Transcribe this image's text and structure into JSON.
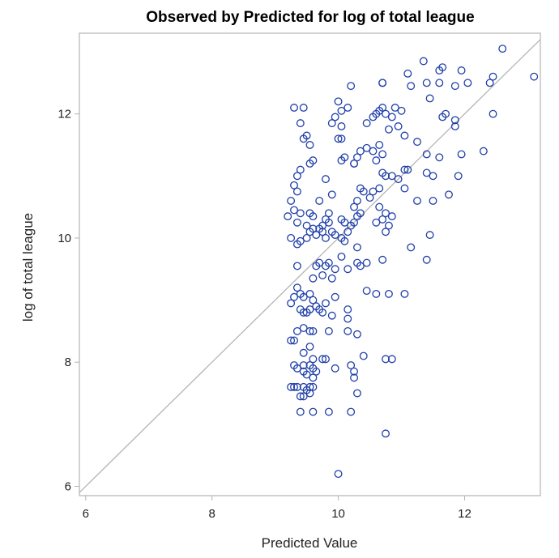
{
  "chart_data": {
    "type": "scatter",
    "title": "Observed by Predicted for log of total league",
    "xlabel": "Predicted Value",
    "ylabel": "log of total league",
    "xlim": [
      5.9,
      13.2
    ],
    "ylim": [
      5.85,
      13.3
    ],
    "xticks": [
      "6",
      "8",
      "10",
      "12"
    ],
    "yticks": [
      "6",
      "8",
      "10",
      "12"
    ],
    "reference_line": "y = x",
    "marker_color": "#1f3fa8",
    "line_color": "#b4b4b4",
    "frame_color": "#b4b4b4",
    "grid": false,
    "points": [
      [
        9.3,
        12.1
      ],
      [
        9.45,
        12.1
      ],
      [
        9.5,
        11.65
      ],
      [
        9.45,
        11.6
      ],
      [
        9.55,
        11.5
      ],
      [
        9.4,
        11.85
      ],
      [
        9.6,
        11.25
      ],
      [
        9.55,
        11.2
      ],
      [
        9.4,
        11.1
      ],
      [
        9.35,
        11.0
      ],
      [
        9.3,
        10.85
      ],
      [
        9.35,
        10.75
      ],
      [
        9.25,
        10.6
      ],
      [
        9.3,
        10.45
      ],
      [
        9.4,
        10.4
      ],
      [
        9.2,
        10.35
      ],
      [
        9.35,
        10.25
      ],
      [
        9.25,
        10.0
      ],
      [
        9.4,
        9.95
      ],
      [
        9.35,
        9.9
      ],
      [
        9.5,
        10.0
      ],
      [
        9.55,
        10.4
      ],
      [
        9.6,
        10.35
      ],
      [
        9.5,
        10.2
      ],
      [
        9.55,
        10.1
      ],
      [
        9.6,
        10.15
      ],
      [
        9.65,
        10.05
      ],
      [
        9.7,
        10.6
      ],
      [
        9.75,
        10.2
      ],
      [
        9.8,
        10.3
      ],
      [
        9.85,
        10.25
      ],
      [
        9.75,
        10.1
      ],
      [
        9.8,
        10.0
      ],
      [
        9.7,
        10.15
      ],
      [
        9.9,
        10.1
      ],
      [
        9.95,
        10.05
      ],
      [
        9.85,
        10.4
      ],
      [
        9.9,
        10.7
      ],
      [
        9.8,
        10.95
      ],
      [
        9.9,
        11.85
      ],
      [
        9.95,
        11.95
      ],
      [
        10.05,
        11.8
      ],
      [
        10.0,
        12.2
      ],
      [
        10.05,
        12.05
      ],
      [
        10.2,
        12.45
      ],
      [
        10.15,
        12.1
      ],
      [
        10.0,
        11.6
      ],
      [
        10.05,
        11.6
      ],
      [
        10.05,
        11.25
      ],
      [
        10.1,
        11.3
      ],
      [
        10.25,
        11.2
      ],
      [
        10.25,
        11.2
      ],
      [
        10.3,
        11.3
      ],
      [
        10.35,
        11.4
      ],
      [
        10.45,
        11.45
      ],
      [
        10.55,
        11.4
      ],
      [
        10.6,
        11.25
      ],
      [
        10.65,
        11.5
      ],
      [
        10.7,
        11.35
      ],
      [
        10.45,
        11.85
      ],
      [
        10.55,
        11.95
      ],
      [
        10.6,
        12.0
      ],
      [
        10.65,
        12.05
      ],
      [
        10.7,
        12.1
      ],
      [
        10.75,
        12.0
      ],
      [
        10.8,
        11.75
      ],
      [
        10.85,
        11.95
      ],
      [
        10.9,
        12.1
      ],
      [
        10.95,
        11.8
      ],
      [
        11.0,
        12.05
      ],
      [
        11.05,
        11.65
      ],
      [
        10.7,
        12.5
      ],
      [
        10.7,
        12.5
      ],
      [
        11.1,
        12.65
      ],
      [
        11.15,
        12.45
      ],
      [
        11.4,
        12.5
      ],
      [
        11.35,
        12.85
      ],
      [
        11.6,
        12.7
      ],
      [
        11.65,
        12.75
      ],
      [
        11.85,
        12.45
      ],
      [
        11.95,
        12.7
      ],
      [
        12.05,
        12.5
      ],
      [
        12.4,
        12.5
      ],
      [
        12.45,
        12.6
      ],
      [
        12.6,
        13.05
      ],
      [
        13.1,
        12.6
      ],
      [
        11.45,
        12.25
      ],
      [
        11.6,
        12.5
      ],
      [
        11.65,
        11.95
      ],
      [
        11.7,
        12.0
      ],
      [
        11.85,
        11.9
      ],
      [
        11.85,
        11.8
      ],
      [
        12.45,
        12.0
      ],
      [
        11.25,
        11.55
      ],
      [
        11.4,
        11.35
      ],
      [
        11.6,
        11.3
      ],
      [
        11.95,
        11.35
      ],
      [
        12.3,
        11.4
      ],
      [
        11.5,
        11.0
      ],
      [
        11.4,
        11.05
      ],
      [
        11.75,
        10.7
      ],
      [
        11.9,
        11.0
      ],
      [
        11.5,
        10.6
      ],
      [
        11.25,
        10.6
      ],
      [
        11.05,
        10.8
      ],
      [
        11.1,
        11.1
      ],
      [
        11.05,
        11.1
      ],
      [
        10.95,
        10.95
      ],
      [
        10.85,
        11.0
      ],
      [
        10.75,
        11.0
      ],
      [
        10.7,
        11.05
      ],
      [
        10.65,
        10.8
      ],
      [
        10.55,
        10.75
      ],
      [
        10.5,
        10.65
      ],
      [
        10.4,
        10.75
      ],
      [
        10.35,
        10.8
      ],
      [
        10.3,
        10.6
      ],
      [
        10.25,
        10.5
      ],
      [
        10.35,
        10.4
      ],
      [
        10.3,
        10.35
      ],
      [
        10.25,
        10.25
      ],
      [
        10.2,
        10.2
      ],
      [
        10.1,
        10.25
      ],
      [
        10.05,
        10.3
      ],
      [
        10.15,
        10.1
      ],
      [
        10.05,
        10.0
      ],
      [
        10.1,
        9.95
      ],
      [
        10.7,
        10.3
      ],
      [
        10.6,
        10.25
      ],
      [
        10.75,
        10.1
      ],
      [
        10.8,
        10.2
      ],
      [
        10.85,
        10.35
      ],
      [
        10.75,
        10.4
      ],
      [
        10.65,
        10.5
      ],
      [
        11.45,
        10.05
      ],
      [
        11.4,
        9.65
      ],
      [
        11.15,
        9.85
      ],
      [
        9.35,
        9.55
      ],
      [
        9.65,
        9.55
      ],
      [
        9.7,
        9.6
      ],
      [
        9.8,
        9.55
      ],
      [
        9.85,
        9.6
      ],
      [
        9.75,
        9.4
      ],
      [
        9.6,
        9.35
      ],
      [
        9.9,
        9.35
      ],
      [
        9.95,
        9.5
      ],
      [
        10.05,
        9.7
      ],
      [
        10.15,
        9.5
      ],
      [
        10.3,
        9.6
      ],
      [
        10.35,
        9.55
      ],
      [
        10.45,
        9.6
      ],
      [
        10.7,
        9.65
      ],
      [
        10.3,
        9.85
      ],
      [
        9.35,
        9.2
      ],
      [
        9.4,
        9.1
      ],
      [
        9.45,
        9.05
      ],
      [
        9.55,
        9.1
      ],
      [
        9.6,
        9.0
      ],
      [
        9.65,
        8.9
      ],
      [
        9.55,
        8.85
      ],
      [
        9.5,
        8.8
      ],
      [
        9.45,
        8.8
      ],
      [
        9.4,
        8.85
      ],
      [
        9.3,
        9.05
      ],
      [
        9.25,
        8.95
      ],
      [
        9.7,
        8.85
      ],
      [
        9.8,
        8.95
      ],
      [
        9.75,
        8.8
      ],
      [
        9.9,
        8.75
      ],
      [
        9.95,
        9.05
      ],
      [
        10.15,
        8.85
      ],
      [
        10.15,
        8.7
      ],
      [
        10.45,
        9.15
      ],
      [
        10.6,
        9.1
      ],
      [
        10.8,
        9.1
      ],
      [
        11.05,
        9.1
      ],
      [
        9.25,
        8.35
      ],
      [
        9.3,
        8.35
      ],
      [
        9.35,
        8.5
      ],
      [
        9.45,
        8.55
      ],
      [
        9.55,
        8.5
      ],
      [
        9.6,
        8.5
      ],
      [
        9.85,
        8.5
      ],
      [
        10.15,
        8.5
      ],
      [
        10.3,
        8.45
      ],
      [
        10.4,
        8.1
      ],
      [
        9.45,
        8.15
      ],
      [
        9.55,
        8.25
      ],
      [
        9.6,
        8.05
      ],
      [
        9.75,
        8.05
      ],
      [
        9.8,
        8.05
      ],
      [
        9.95,
        7.9
      ],
      [
        10.2,
        7.95
      ],
      [
        10.25,
        7.85
      ],
      [
        10.25,
        7.75
      ],
      [
        10.75,
        8.05
      ],
      [
        10.85,
        8.05
      ],
      [
        9.3,
        7.95
      ],
      [
        9.35,
        7.9
      ],
      [
        9.45,
        7.95
      ],
      [
        9.45,
        7.85
      ],
      [
        9.5,
        7.8
      ],
      [
        9.55,
        7.95
      ],
      [
        9.6,
        7.9
      ],
      [
        9.65,
        7.85
      ],
      [
        9.6,
        7.75
      ],
      [
        9.25,
        7.6
      ],
      [
        9.3,
        7.6
      ],
      [
        9.35,
        7.6
      ],
      [
        9.45,
        7.6
      ],
      [
        9.5,
        7.55
      ],
      [
        9.55,
        7.6
      ],
      [
        9.6,
        7.6
      ],
      [
        9.45,
        7.45
      ],
      [
        9.4,
        7.45
      ],
      [
        9.55,
        7.5
      ],
      [
        10.3,
        7.5
      ],
      [
        9.4,
        7.2
      ],
      [
        9.6,
        7.2
      ],
      [
        9.85,
        7.2
      ],
      [
        10.2,
        7.2
      ],
      [
        10.75,
        6.85
      ],
      [
        10.0,
        6.2
      ]
    ]
  }
}
